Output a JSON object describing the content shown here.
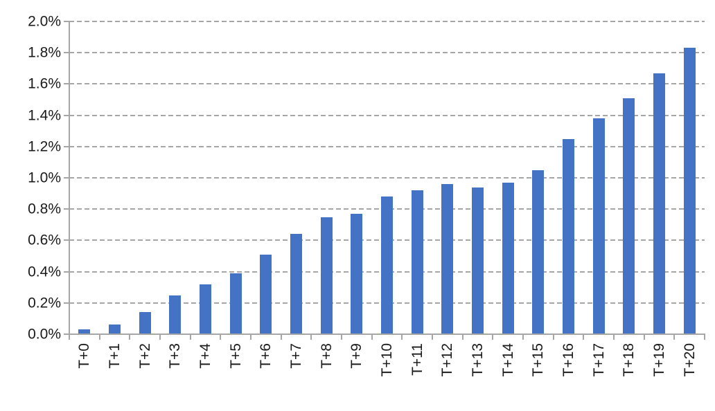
{
  "chart_data": {
    "type": "bar",
    "title": "",
    "xlabel": "",
    "ylabel": "",
    "value_unit": "%",
    "categories": [
      "T+0",
      "T+1",
      "T+2",
      "T+3",
      "T+4",
      "T+5",
      "T+6",
      "T+7",
      "T+8",
      "T+9",
      "T+10",
      "T+11",
      "T+12",
      "T+13",
      "T+14",
      "T+15",
      "T+16",
      "T+17",
      "T+18",
      "T+19",
      "T+20"
    ],
    "values": [
      0.03,
      0.06,
      0.14,
      0.25,
      0.32,
      0.39,
      0.51,
      0.64,
      0.75,
      0.77,
      0.88,
      0.92,
      0.96,
      0.94,
      0.97,
      1.05,
      1.25,
      1.38,
      1.51,
      1.67,
      1.83
    ],
    "ylim": [
      0,
      2.0
    ],
    "ytick_step": 0.2,
    "ytick_labels": [
      "0.0%",
      "0.2%",
      "0.4%",
      "0.6%",
      "0.8%",
      "1.0%",
      "1.2%",
      "1.4%",
      "1.6%",
      "1.8%",
      "2.0%"
    ],
    "grid": "horizontal-dashed",
    "legend": null,
    "colors": {
      "bar": "#4472C4",
      "gridline": "#A6A6A6",
      "axis": "#A6A6A6",
      "text": "#1A1A1A",
      "background": "#FFFFFF"
    }
  }
}
